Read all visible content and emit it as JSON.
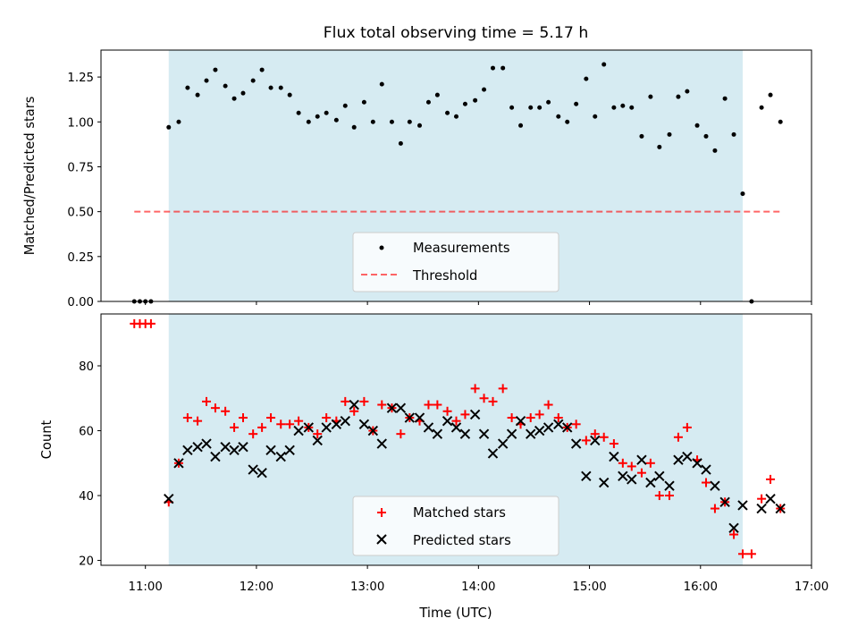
{
  "chart_data": {
    "title": "Flux total observing time = 5.17 h",
    "xlabel": "Time (UTC)",
    "x_ticks": [
      "11:00",
      "12:00",
      "13:00",
      "14:00",
      "15:00",
      "16:00",
      "17:00"
    ],
    "x_tick_hours": [
      11,
      12,
      13,
      14,
      15,
      16,
      17
    ],
    "xlim_hours": [
      10.6,
      17.0
    ],
    "shaded_span_hours": [
      11.21,
      16.38
    ],
    "shade_color": "#add8e6",
    "panels": [
      {
        "type": "scatter",
        "ylabel": "Matched/Predicted stars",
        "ylim": [
          0,
          1.4
        ],
        "y_ticks": [
          "0.00",
          "0.25",
          "0.50",
          "0.75",
          "1.00",
          "1.25"
        ],
        "y_tick_values": [
          0,
          0.25,
          0.5,
          0.75,
          1.0,
          1.25
        ],
        "legend": {
          "position": "lower center",
          "entries": [
            "Measurements",
            "Threshold"
          ]
        },
        "threshold": {
          "value": 0.5,
          "x_range_hours": [
            10.9,
            16.72
          ],
          "color": "#ff0000"
        },
        "series": [
          {
            "name": "Measurements",
            "color": "#000000",
            "x_hours": [
              10.9,
              10.95,
              11.0,
              11.05,
              11.21,
              11.3,
              11.38,
              11.47,
              11.55,
              11.63,
              11.72,
              11.8,
              11.88,
              11.97,
              12.05,
              12.13,
              12.22,
              12.3,
              12.38,
              12.47,
              12.55,
              12.63,
              12.72,
              12.8,
              12.88,
              12.97,
              13.05,
              13.13,
              13.22,
              13.3,
              13.38,
              13.47,
              13.55,
              13.63,
              13.72,
              13.8,
              13.88,
              13.97,
              14.05,
              14.13,
              14.22,
              14.3,
              14.38,
              14.47,
              14.55,
              14.63,
              14.72,
              14.8,
              14.88,
              14.97,
              15.05,
              15.13,
              15.22,
              15.3,
              15.38,
              15.47,
              15.55,
              15.63,
              15.72,
              15.8,
              15.88,
              15.97,
              16.05,
              16.13,
              16.22,
              16.3,
              16.38,
              16.46,
              16.55,
              16.63,
              16.72
            ],
            "y": [
              0,
              0,
              0,
              0,
              0.97,
              1.0,
              1.19,
              1.15,
              1.23,
              1.29,
              1.2,
              1.13,
              1.16,
              1.23,
              1.29,
              1.19,
              1.19,
              1.15,
              1.05,
              1.0,
              1.03,
              1.05,
              1.01,
              1.09,
              0.97,
              1.11,
              1.0,
              1.21,
              1.0,
              0.88,
              1.0,
              0.98,
              1.11,
              1.15,
              1.05,
              1.03,
              1.1,
              1.12,
              1.18,
              1.3,
              1.3,
              1.08,
              0.98,
              1.08,
              1.08,
              1.11,
              1.03,
              1.0,
              1.1,
              1.24,
              1.03,
              1.32,
              1.08,
              1.09,
              1.08,
              0.92,
              1.14,
              0.86,
              0.93,
              1.14,
              1.17,
              0.98,
              0.92,
              0.84,
              1.13,
              0.93,
              0.6,
              0,
              1.08,
              1.15,
              1.0
            ]
          }
        ]
      },
      {
        "type": "scatter",
        "ylabel": "Count",
        "ylim": [
          18.5,
          96
        ],
        "y_ticks": [
          "20",
          "40",
          "60",
          "80"
        ],
        "y_tick_values": [
          20,
          40,
          60,
          80
        ],
        "legend": {
          "position": "lower center",
          "entries": [
            "Matched stars",
            "Predicted stars"
          ]
        },
        "series": [
          {
            "name": "Matched stars",
            "marker": "+",
            "color": "#ff0000",
            "x_hours": [
              10.9,
              10.95,
              11.0,
              11.05,
              11.21,
              11.3,
              11.38,
              11.47,
              11.55,
              11.63,
              11.72,
              11.8,
              11.88,
              11.97,
              12.05,
              12.13,
              12.22,
              12.3,
              12.38,
              12.47,
              12.55,
              12.63,
              12.72,
              12.8,
              12.88,
              12.97,
              13.05,
              13.13,
              13.22,
              13.3,
              13.38,
              13.47,
              13.55,
              13.63,
              13.72,
              13.8,
              13.88,
              13.97,
              14.05,
              14.13,
              14.22,
              14.3,
              14.38,
              14.47,
              14.55,
              14.63,
              14.72,
              14.8,
              14.88,
              14.97,
              15.05,
              15.13,
              15.22,
              15.3,
              15.38,
              15.47,
              15.55,
              15.63,
              15.72,
              15.8,
              15.88,
              15.97,
              16.05,
              16.13,
              16.22,
              16.3,
              16.38,
              16.46,
              16.55,
              16.63,
              16.72
            ],
            "y": [
              93,
              93,
              93,
              93,
              38,
              50,
              64,
              63,
              69,
              67,
              66,
              61,
              64,
              59,
              61,
              64,
              62,
              62,
              63,
              61,
              59,
              64,
              63,
              69,
              66,
              69,
              60,
              68,
              67,
              59,
              64,
              63,
              68,
              68,
              66,
              63,
              65,
              73,
              70,
              69,
              73,
              64,
              62,
              64,
              65,
              68,
              64,
              61,
              62,
              57,
              59,
              58,
              56,
              50,
              49,
              47,
              50,
              40,
              40,
              58,
              61,
              51,
              44,
              36,
              38,
              28,
              22,
              22,
              39,
              45,
              36
            ]
          },
          {
            "name": "Predicted stars",
            "marker": "x",
            "color": "#000000",
            "x_hours": [
              11.21,
              11.3,
              11.38,
              11.47,
              11.55,
              11.63,
              11.72,
              11.8,
              11.88,
              11.97,
              12.05,
              12.13,
              12.22,
              12.3,
              12.38,
              12.47,
              12.55,
              12.63,
              12.72,
              12.8,
              12.88,
              12.97,
              13.05,
              13.13,
              13.22,
              13.3,
              13.38,
              13.47,
              13.55,
              13.63,
              13.72,
              13.8,
              13.88,
              13.97,
              14.05,
              14.13,
              14.22,
              14.3,
              14.38,
              14.47,
              14.55,
              14.63,
              14.72,
              14.8,
              14.88,
              14.97,
              15.05,
              15.13,
              15.22,
              15.3,
              15.38,
              15.47,
              15.55,
              15.63,
              15.72,
              15.8,
              15.88,
              15.97,
              16.05,
              16.13,
              16.22,
              16.3,
              16.38,
              16.55,
              16.63,
              16.72
            ],
            "y": [
              39,
              50,
              54,
              55,
              56,
              52,
              55,
              54,
              55,
              48,
              47,
              54,
              52,
              54,
              60,
              61,
              57,
              61,
              62,
              63,
              68,
              62,
              60,
              56,
              67,
              67,
              64,
              64,
              61,
              59,
              63,
              61,
              59,
              65,
              59,
              53,
              56,
              59,
              63,
              59,
              60,
              61,
              62,
              61,
              56,
              46,
              57,
              44,
              52,
              46,
              45,
              51,
              44,
              46,
              43,
              51,
              52,
              50,
              48,
              43,
              38,
              30,
              37,
              36,
              39,
              36
            ]
          }
        ]
      }
    ]
  }
}
